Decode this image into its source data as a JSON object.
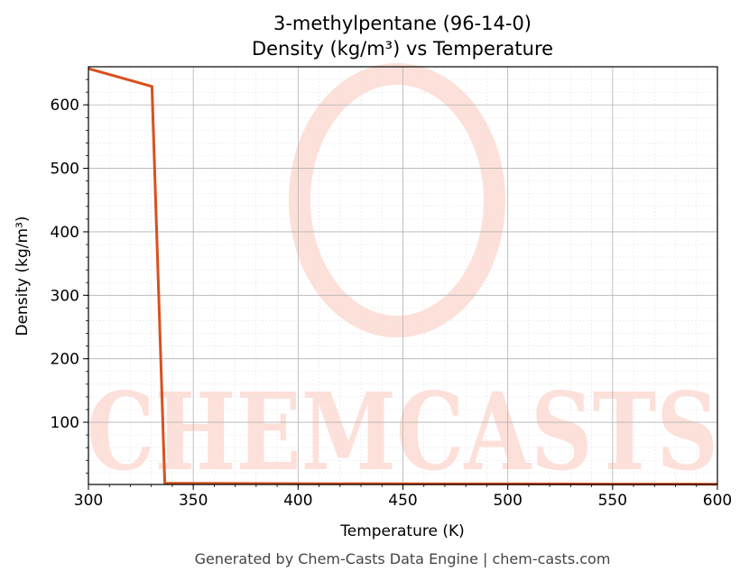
{
  "chart_data": {
    "type": "line",
    "title": "3-methylpentane (96-14-0)",
    "subtitle": "Density (kg/m³) vs Temperature",
    "xlabel": "Temperature (K)",
    "ylabel": "Density (kg/m³)",
    "xlim": [
      300,
      600
    ],
    "ylim": [
      2,
      660
    ],
    "x_ticks": [
      300,
      350,
      400,
      450,
      500,
      550,
      600
    ],
    "y_ticks": [
      100,
      200,
      300,
      400,
      500,
      600
    ],
    "grid": true,
    "series": [
      {
        "color": "#d9501f",
        "x": [
          300,
          330.3,
          336.4,
          340,
          400,
          450,
          500,
          550,
          600
        ],
        "y": [
          657,
          629,
          4,
          3.8,
          3.3,
          3.0,
          2.8,
          2.6,
          2.4
        ]
      }
    ]
  },
  "watermark": {
    "text": "CHEMCASTS",
    "color": "#fde0d9"
  },
  "footer": "Generated by Chem-Casts Data Engine | chem-casts.com"
}
